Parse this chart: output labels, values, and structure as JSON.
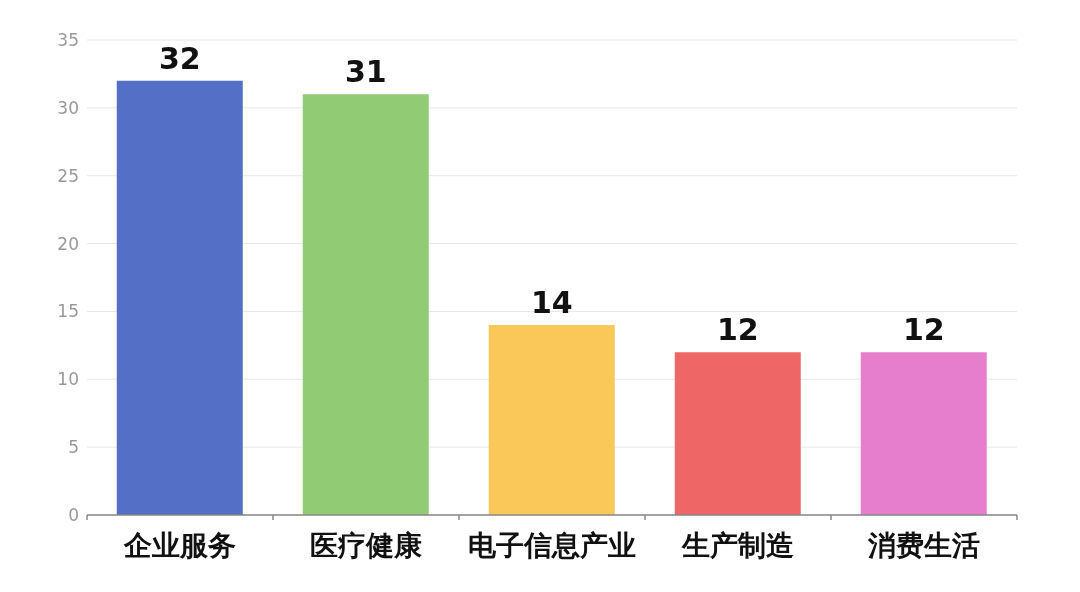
{
  "chart_data": {
    "type": "bar",
    "categories": [
      "企业服务",
      "医疗健康",
      "电子信息产业",
      "生产制造",
      "消费生活"
    ],
    "values": [
      32,
      31,
      14,
      12,
      12
    ],
    "colors": [
      "#5470c6",
      "#91cb74",
      "#fac858",
      "#ee6666",
      "#e67ecd"
    ],
    "ylim": [
      0,
      35
    ],
    "yticks": [
      0,
      5,
      10,
      15,
      20,
      25,
      30,
      35
    ],
    "grid": "y",
    "data_labels": true
  }
}
